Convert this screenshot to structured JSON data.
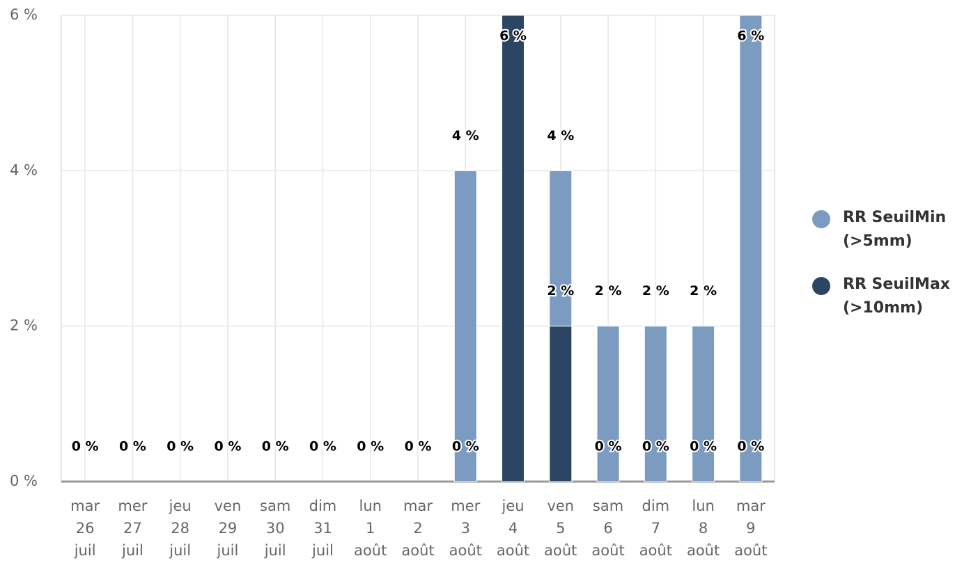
{
  "chart_data": {
    "type": "bar",
    "grouping": "overlap",
    "categories": [
      [
        "mar",
        "26",
        "juil"
      ],
      [
        "mer",
        "27",
        "juil"
      ],
      [
        "jeu",
        "28",
        "juil"
      ],
      [
        "ven",
        "29",
        "juil"
      ],
      [
        "sam",
        "30",
        "juil"
      ],
      [
        "dim",
        "31",
        "juil"
      ],
      [
        "lun",
        "1",
        "août"
      ],
      [
        "mar",
        "2",
        "août"
      ],
      [
        "mer",
        "3",
        "août"
      ],
      [
        "jeu",
        "4",
        "août"
      ],
      [
        "ven",
        "5",
        "août"
      ],
      [
        "sam",
        "6",
        "août"
      ],
      [
        "dim",
        "7",
        "août"
      ],
      [
        "lun",
        "8",
        "août"
      ],
      [
        "mar",
        "9",
        "août"
      ]
    ],
    "series": [
      {
        "name": "RR SeuilMin (>5mm)",
        "color": "#7b9bc0",
        "values": [
          0,
          0,
          0,
          0,
          0,
          0,
          0,
          0,
          4,
          6,
          4,
          2,
          2,
          2,
          6
        ],
        "value_labels": [
          "0 %",
          "0 %",
          "0 %",
          "0 %",
          "0 %",
          "0 %",
          "0 %",
          "0 %",
          "4 %",
          "6 %",
          "4 %",
          "2 %",
          "2 %",
          "2 %",
          "6 %"
        ]
      },
      {
        "name": "RR SeuilMax (>10mm)",
        "color": "#2b4563",
        "values": [
          0,
          0,
          0,
          0,
          0,
          0,
          0,
          0,
          0,
          6,
          2,
          0,
          0,
          0,
          0
        ],
        "value_labels": [
          "0 %",
          "0 %",
          "0 %",
          "0 %",
          "0 %",
          "0 %",
          "0 %",
          "0 %",
          "0 %",
          "6 %",
          "2 %",
          "0 %",
          "0 %",
          "0 %",
          "0 %"
        ]
      }
    ],
    "ylim": [
      0,
      6
    ],
    "yticks": [
      {
        "value": 0,
        "label": "0 %"
      },
      {
        "value": 2,
        "label": "2 %"
      },
      {
        "value": 4,
        "label": "4 %"
      },
      {
        "value": 6,
        "label": "6 %"
      }
    ],
    "grid": true,
    "legend": "right"
  }
}
